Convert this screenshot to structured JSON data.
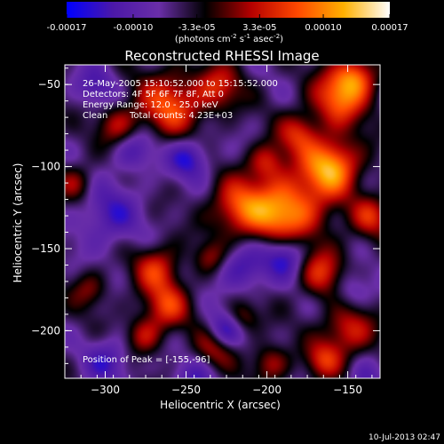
{
  "colorbar": {
    "ticks": [
      "-0.00017",
      "-0.00010",
      "-3.3e-05",
      "3.3e-05",
      "0.00010",
      "0.00017"
    ],
    "tick_values": [
      -0.00017,
      -0.0001,
      -3.3e-05,
      3.3e-05,
      0.0001,
      0.00017
    ],
    "range": [
      -0.00017,
      0.00017
    ],
    "units_main": "(photons cm",
    "units_sup1": "-2",
    "units_mid": " s",
    "units_sup2": "-1",
    "units_end": " asec",
    "units_sup3": "-2",
    "units_close": ")"
  },
  "image_info": {
    "time_range": "26-May-2005 15:10:52.000 to 15:15:52.000",
    "detectors": "Detectors: 4F 5F 6F 7F 8F, Att 0",
    "energy": "Energy Range: 12.0 - 25.0 keV",
    "method": "Clean",
    "counts": "Total counts: 4.23E+03",
    "peak": "Position of Peak = [-155,-96]"
  },
  "footer_date": "10-Jul-2013 02:47",
  "chart_data": {
    "type": "heatmap",
    "title": "Reconstructed RHESSI Image",
    "xlabel": "Heliocentric X (arcsec)",
    "ylabel": "Heliocentric Y (arcsec)",
    "xlim": [
      -325,
      -130
    ],
    "ylim": [
      -229,
      -38
    ],
    "xticks": [
      -300,
      -250,
      -200,
      -150
    ],
    "yticks": [
      -50,
      -100,
      -150,
      -200
    ],
    "peak_position": [
      -155,
      -96
    ],
    "colormap": [
      "#0000ff",
      "#4b18a8",
      "#6a2ea8",
      "#000000",
      "#b50000",
      "#ff4800",
      "#ffb000",
      "#ffffff"
    ],
    "blobs": [
      {
        "x": -188,
        "y": -128,
        "s": 16,
        "a": 0.00017
      },
      {
        "x": -160,
        "y": -100,
        "s": 12,
        "a": 0.00017
      },
      {
        "x": -218,
        "y": -125,
        "s": 12,
        "a": 0.00011
      },
      {
        "x": -200,
        "y": -97,
        "s": 8,
        "a": 8e-05
      },
      {
        "x": -180,
        "y": -80,
        "s": 9,
        "a": 9e-05
      },
      {
        "x": -155,
        "y": -58,
        "s": 12,
        "a": 0.00013
      },
      {
        "x": -145,
        "y": -45,
        "s": 9,
        "a": 0.00011
      },
      {
        "x": -260,
        "y": -62,
        "s": 14,
        "a": 0.00012
      },
      {
        "x": -230,
        "y": -52,
        "s": 10,
        "a": 9e-05
      },
      {
        "x": -292,
        "y": -75,
        "s": 9,
        "a": 8e-05
      },
      {
        "x": -268,
        "y": -162,
        "s": 10,
        "a": 0.0001
      },
      {
        "x": -262,
        "y": -185,
        "s": 10,
        "a": 0.0001
      },
      {
        "x": -276,
        "y": -203,
        "s": 8,
        "a": 8e-05
      },
      {
        "x": -232,
        "y": -210,
        "s": 9,
        "a": 8e-05
      },
      {
        "x": -198,
        "y": -220,
        "s": 8,
        "a": 8e-05
      },
      {
        "x": -215,
        "y": -192,
        "s": 7,
        "a": 7e-05
      },
      {
        "x": -165,
        "y": -165,
        "s": 11,
        "a": 0.0001
      },
      {
        "x": -150,
        "y": -200,
        "s": 11,
        "a": 0.0001
      },
      {
        "x": -165,
        "y": -218,
        "s": 8,
        "a": 9e-05
      },
      {
        "x": -135,
        "y": -130,
        "s": 9,
        "a": 9e-05
      },
      {
        "x": -318,
        "y": -110,
        "s": 8,
        "a": 7e-05
      },
      {
        "x": -310,
        "y": -175,
        "s": 8,
        "a": 6e-05
      },
      {
        "x": -235,
        "y": -155,
        "s": 7,
        "a": 6e-05
      },
      {
        "x": -248,
        "y": -95,
        "s": 9,
        "a": -9e-05
      },
      {
        "x": -215,
        "y": -162,
        "s": 10,
        "a": -8e-05
      },
      {
        "x": -188,
        "y": -153,
        "s": 10,
        "a": -0.00012
      },
      {
        "x": -226,
        "y": -200,
        "s": 8,
        "a": -0.0001
      },
      {
        "x": -298,
        "y": -130,
        "s": 14,
        "a": -7e-05
      },
      {
        "x": -282,
        "y": -90,
        "s": 9,
        "a": -7e-05
      },
      {
        "x": -298,
        "y": -218,
        "s": 10,
        "a": -7e-05
      },
      {
        "x": -150,
        "y": -175,
        "s": 9,
        "a": -6e-05
      },
      {
        "x": -305,
        "y": -50,
        "s": 9,
        "a": -6e-05
      },
      {
        "x": -245,
        "y": -230,
        "s": 9,
        "a": -6e-05
      },
      {
        "x": -140,
        "y": -230,
        "s": 7,
        "a": -5e-05
      }
    ]
  }
}
